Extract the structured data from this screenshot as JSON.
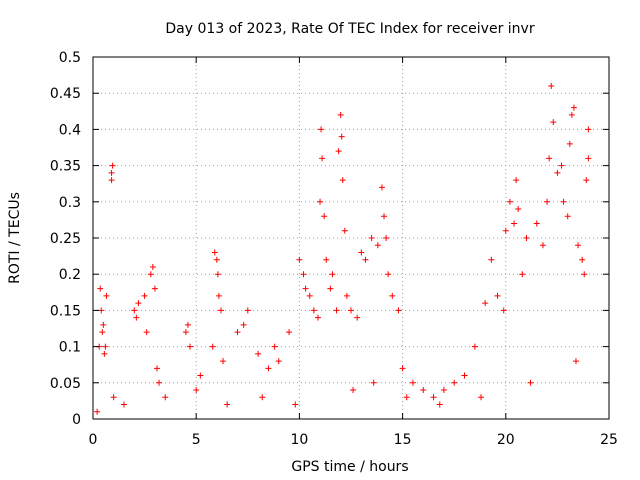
{
  "chart_data": {
    "type": "scatter",
    "title": "Day 013 of 2023, Rate Of TEC Index for receiver invr",
    "xlabel": "GPS time / hours",
    "ylabel": "ROTI / TECUs",
    "xlim": [
      0,
      25
    ],
    "ylim": [
      0,
      0.5
    ],
    "xticks": [
      "0",
      "5",
      "10",
      "15",
      "20",
      "25"
    ],
    "yticks": [
      "0",
      "0.05",
      "0.1",
      "0.15",
      "0.2",
      "0.25",
      "0.3",
      "0.35",
      "0.4",
      "0.45",
      "0.5"
    ],
    "grid": true,
    "marker": "+",
    "color": "#ff0000",
    "series": [
      {
        "x": [
          0.3,
          0.35,
          0.4,
          0.45,
          0.5,
          0.55,
          0.6,
          0.65,
          0.9,
          0.95,
          0.9,
          1.0,
          2.0,
          2.1,
          2.2,
          2.5,
          2.6,
          2.8,
          2.9,
          3.0,
          3.1,
          3.2,
          4.5,
          4.6,
          4.7,
          5.0,
          5.2,
          5.8,
          5.9,
          6.0,
          6.05,
          6.1,
          6.2,
          6.3,
          7.0,
          7.3,
          7.5,
          8.0,
          8.5,
          8.8,
          9.0,
          9.5,
          10.0,
          10.2,
          10.3,
          10.5,
          10.7,
          10.9,
          11.0,
          11.05,
          11.1,
          11.2,
          11.3,
          11.5,
          11.6,
          11.8,
          11.9,
          12.0,
          12.05,
          12.1,
          12.2,
          12.3,
          12.5,
          12.8,
          13.0,
          13.2,
          13.5,
          13.8,
          14.0,
          14.1,
          14.2,
          14.3,
          14.5,
          14.8,
          15.0,
          15.5,
          16.0,
          16.5,
          17.0,
          17.5,
          18.0,
          18.5,
          19.0,
          19.3,
          19.6,
          19.9,
          20.0,
          20.2,
          20.4,
          20.5,
          20.6,
          20.8,
          21.0,
          21.5,
          21.8,
          22.0,
          22.1,
          22.2,
          22.3,
          22.5,
          22.7,
          22.8,
          23.0,
          23.1,
          23.2,
          23.3,
          23.5,
          23.7,
          23.8,
          23.9,
          24.0,
          24.0,
          0.2,
          1.5,
          3.5,
          6.5,
          8.2,
          9.8,
          12.6,
          13.6,
          15.2,
          16.8,
          18.8,
          21.2,
          23.4
        ],
        "y": [
          0.1,
          0.18,
          0.15,
          0.12,
          0.13,
          0.09,
          0.1,
          0.17,
          0.33,
          0.35,
          0.34,
          0.03,
          0.15,
          0.14,
          0.16,
          0.17,
          0.12,
          0.2,
          0.21,
          0.18,
          0.07,
          0.05,
          0.12,
          0.13,
          0.1,
          0.04,
          0.06,
          0.1,
          0.23,
          0.22,
          0.2,
          0.17,
          0.15,
          0.08,
          0.12,
          0.13,
          0.15,
          0.09,
          0.07,
          0.1,
          0.08,
          0.12,
          0.22,
          0.2,
          0.18,
          0.17,
          0.15,
          0.14,
          0.3,
          0.4,
          0.36,
          0.28,
          0.22,
          0.18,
          0.2,
          0.15,
          0.37,
          0.42,
          0.39,
          0.33,
          0.26,
          0.17,
          0.15,
          0.14,
          0.23,
          0.22,
          0.25,
          0.24,
          0.32,
          0.28,
          0.25,
          0.2,
          0.17,
          0.15,
          0.07,
          0.05,
          0.04,
          0.03,
          0.04,
          0.05,
          0.06,
          0.1,
          0.16,
          0.22,
          0.17,
          0.15,
          0.26,
          0.3,
          0.27,
          0.33,
          0.29,
          0.2,
          0.25,
          0.27,
          0.24,
          0.3,
          0.36,
          0.46,
          0.41,
          0.34,
          0.35,
          0.3,
          0.28,
          0.38,
          0.42,
          0.43,
          0.24,
          0.22,
          0.2,
          0.33,
          0.4,
          0.36,
          0.01,
          0.02,
          0.03,
          0.02,
          0.03,
          0.02,
          0.04,
          0.05,
          0.03,
          0.02,
          0.03,
          0.05,
          0.08
        ]
      }
    ]
  }
}
